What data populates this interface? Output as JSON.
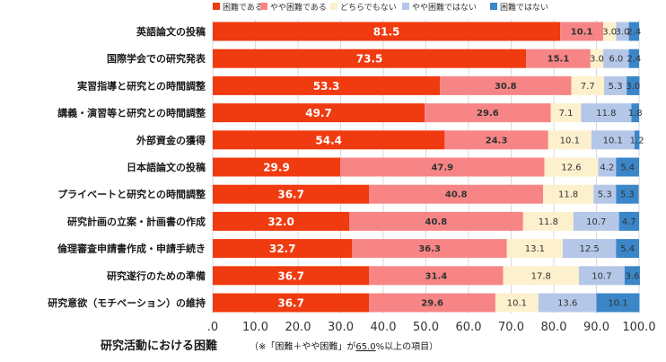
{
  "chart_data": {
    "type": "bar",
    "orientation": "horizontal",
    "stacked": true,
    "title": "研究活動における困難",
    "subtitle_parts": [
      "（※「困難＋やや困難」が",
      "65.0",
      "%以上の項目）"
    ],
    "xlim": [
      0,
      100
    ],
    "x_ticks": [
      ".0",
      "10.0",
      "20.0",
      "30.0",
      "40.0",
      "50.0",
      "60.0",
      "70.0",
      "80.0",
      "90.0",
      "100.0"
    ],
    "legend_position": "top",
    "grid": true,
    "categories": [
      "英語論文の投稿",
      "国際学会での研究発表",
      "実習指導と研究との時間調整",
      "講義・演習等と研究との時間調整",
      "外部資金の獲得",
      "日本語論文の投稿",
      "プライベートと研究との時間調整",
      "研究計画の立案・計画書の作成",
      "倫理審査申請書作成・申請手続き",
      "研究遂行のための準備",
      "研究意欲（モチベーション）の維持"
    ],
    "series": [
      {
        "name": "困難である",
        "color": "#f03a10",
        "values": [
          81.5,
          73.5,
          53.3,
          49.7,
          54.4,
          29.9,
          36.7,
          32.0,
          32.7,
          36.7,
          36.7
        ]
      },
      {
        "name": "やや困難である",
        "color": "#f78586",
        "values": [
          10.1,
          15.1,
          30.8,
          29.6,
          24.3,
          47.9,
          40.8,
          40.8,
          36.3,
          31.4,
          29.6
        ]
      },
      {
        "name": "どちらでもない",
        "color": "#fdf0cc",
        "values": [
          3.0,
          3.0,
          7.7,
          7.1,
          10.1,
          12.6,
          11.8,
          11.8,
          13.1,
          17.8,
          10.1
        ]
      },
      {
        "name": "やや困難ではない",
        "color": "#b5c7e8",
        "values": [
          3.0,
          6.0,
          5.3,
          11.8,
          10.1,
          4.2,
          5.3,
          10.7,
          12.5,
          10.7,
          13.6
        ]
      },
      {
        "name": "困難ではない",
        "color": "#3a86c8",
        "values": [
          2.4,
          2.4,
          3.0,
          1.8,
          1.2,
          5.4,
          5.3,
          4.7,
          5.4,
          3.6,
          10.1
        ]
      }
    ],
    "data_labels": [
      [
        "81.5",
        "10.1",
        "3.0",
        "3.0",
        "2.4"
      ],
      [
        "73.5",
        "15.1",
        "3.0",
        "6.0",
        "2.4"
      ],
      [
        "53.3",
        "30.8",
        "7.7",
        "5.3",
        "3.0"
      ],
      [
        "49.7",
        "29.6",
        "7.1",
        "11.8",
        "1.8"
      ],
      [
        "54.4",
        "24.3",
        "10.1",
        "10.1",
        "1.2"
      ],
      [
        "29.9",
        "47.9",
        "12.6",
        "4.2",
        "5.4"
      ],
      [
        "36.7",
        "40.8",
        "11.8",
        "5.3",
        "5.3"
      ],
      [
        "32.0",
        "40.8",
        "11.8",
        "10.7",
        "4.7"
      ],
      [
        "32.7",
        "36.3",
        "13.1",
        "12.5",
        "5.4"
      ],
      [
        "36.7",
        "31.4",
        "17.8",
        "10.7",
        "3.6"
      ],
      [
        "36.7",
        "29.6",
        "10.1",
        "13.6",
        "10.1"
      ]
    ]
  }
}
